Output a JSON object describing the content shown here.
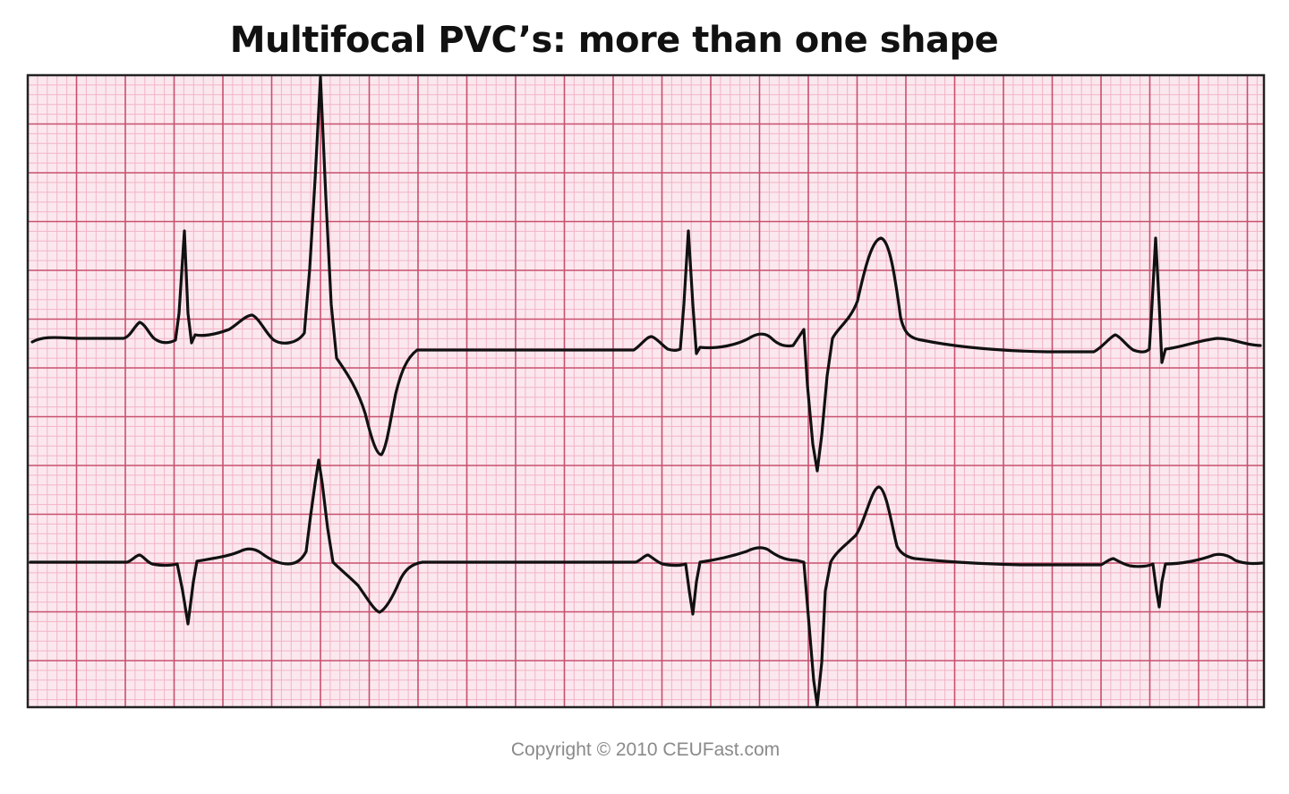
{
  "title": "Multifocal PVC’s: more than one shape",
  "copyright": "Copyright © 2010 CEUFast.com",
  "colors": {
    "paper": "#fbe8ee",
    "minor_grid": "#f2b4c6",
    "major_grid": "#c8506e",
    "trace": "#111111",
    "border": "#222222"
  },
  "traces": [
    {
      "name": "upper-lead",
      "beats": [
        "normal",
        "pvc-upright",
        "normal",
        "pvc-inverted",
        "normal"
      ]
    },
    {
      "name": "lower-lead",
      "beats": [
        "normal",
        "pvc-upright",
        "normal",
        "pvc-inverted",
        "normal"
      ]
    }
  ]
}
